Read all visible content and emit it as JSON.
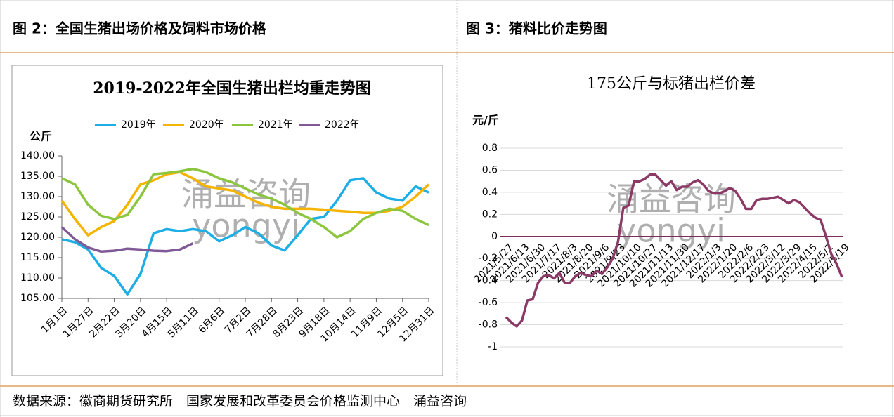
{
  "header": {
    "left_title": "图 2：全国生猪出场价格及饲料市场价格",
    "right_title": "图 3：猪料比价走势图"
  },
  "footer": "数据来源：徽商期货研究所　国家发展和改革委员会价格监测中心　涌益咨询",
  "watermark": {
    "cn": "涌益咨询",
    "en": "yongyi"
  },
  "chart_data": [
    {
      "type": "line",
      "title": "2019-2022年全国生猪出栏均重走势图",
      "y_label": "公斤",
      "grid": false,
      "legend": "top",
      "categories": [
        "1月1日",
        null,
        "1月27日",
        null,
        "2月22日",
        null,
        "3月20日",
        null,
        "4月15日",
        null,
        "5月11日",
        null,
        "6月6日",
        null,
        "7月2日",
        null,
        "7月28日",
        null,
        "8月23日",
        null,
        "9月18日",
        null,
        "10月14日",
        null,
        "11月9日",
        null,
        "12月5日",
        null,
        "12月31日"
      ],
      "series": [
        {
          "name": "2019年",
          "color": "#1eaee6",
          "values": [
            119.5,
            118.8,
            117,
            112.5,
            110.5,
            106,
            111,
            121,
            122,
            121.5,
            122,
            121.5,
            119,
            120.5,
            122.5,
            121,
            118,
            116.8,
            120.5,
            124.5,
            125,
            129,
            134,
            134.5,
            131,
            129.5,
            129,
            132.5,
            131
          ]
        },
        {
          "name": "2020年",
          "color": "#f5b400",
          "values": [
            129,
            124.5,
            120.5,
            122.5,
            124,
            128,
            133,
            134,
            135.5,
            136,
            134.5,
            132.5,
            132,
            131.5,
            130,
            128.5,
            127.5,
            127,
            127,
            127,
            126.8,
            126.5,
            126.3,
            126,
            126,
            126.5,
            127.5,
            130,
            133
          ]
        },
        {
          "name": "2021年",
          "color": "#8cc63f",
          "values": [
            134.5,
            133,
            128,
            125.3,
            124.5,
            125.5,
            130,
            135.5,
            135.8,
            136.2,
            136.8,
            136,
            134.5,
            133.5,
            132,
            130.5,
            129.5,
            128,
            126,
            124.5,
            122.5,
            120,
            121.5,
            124.5,
            126,
            127,
            126.5,
            124.5,
            123
          ]
        },
        {
          "name": "2022年",
          "color": "#7f5a96",
          "values": [
            122.5,
            119.5,
            117.5,
            116.5,
            116.7,
            117.2,
            117,
            116.7,
            116.6,
            117,
            118.5,
            null,
            null,
            null,
            null,
            null,
            null,
            null,
            null,
            null,
            null,
            null,
            null,
            null,
            null,
            null,
            null,
            null,
            null
          ]
        }
      ],
      "ylim": [
        105,
        140
      ],
      "yticks": [
        {
          "value": 105,
          "label": "105.00"
        },
        {
          "value": 110,
          "label": "110.00"
        },
        {
          "value": 115,
          "label": "115.00"
        },
        {
          "value": 120,
          "label": "120.00"
        },
        {
          "value": 125,
          "label": "125.00"
        },
        {
          "value": 130,
          "label": "130.00"
        },
        {
          "value": 135,
          "label": "135.00"
        },
        {
          "value": 140,
          "label": "140.00"
        }
      ]
    },
    {
      "type": "line",
      "title": "175公斤与标猪出栏价差",
      "y_label": "元/斤",
      "grid": true,
      "grid_color": "#d9d9d9",
      "zero_line_color": "#7b2d5e",
      "color": "#8b3a66",
      "categories": [
        "2021/5/27",
        null,
        null,
        "2021/6/13",
        null,
        null,
        "2021/6/30",
        null,
        null,
        "2021/7/17",
        null,
        null,
        "2021/8/3",
        null,
        null,
        "2021/8/20",
        null,
        null,
        "2021/9/6",
        null,
        null,
        "2021/9/23",
        null,
        null,
        "2021/10/10",
        null,
        null,
        "2021/10/27",
        null,
        null,
        "2021/11/13",
        null,
        null,
        "2021/11/30",
        null,
        null,
        "2021/12/17",
        null,
        null,
        "2022/1/3",
        null,
        null,
        "2022/1/20",
        null,
        null,
        "2022/2/6",
        null,
        null,
        "2022/2/23",
        null,
        null,
        "2022/3/12",
        null,
        null,
        "2022/3/29",
        null,
        null,
        "2022/4/15",
        null,
        null,
        "2022/5/2",
        null,
        null,
        "2022/5/19"
      ],
      "values": [
        -0.73,
        -0.78,
        -0.815,
        -0.76,
        -0.58,
        -0.57,
        -0.42,
        -0.36,
        -0.35,
        -0.38,
        -0.33,
        -0.42,
        -0.42,
        -0.36,
        -0.33,
        -0.35,
        -0.36,
        -0.31,
        -0.34,
        -0.28,
        -0.2,
        -0.05,
        0.26,
        0.28,
        0.5,
        0.5,
        0.52,
        0.56,
        0.56,
        0.51,
        0.46,
        0.5,
        0.42,
        0.45,
        0.45,
        0.49,
        0.51,
        0.47,
        0.41,
        0.39,
        0.39,
        0.41,
        0.44,
        0.41,
        0.34,
        0.25,
        0.25,
        0.33,
        0.34,
        0.34,
        0.35,
        0.36,
        0.33,
        0.3,
        0.33,
        0.31,
        0.26,
        0.21,
        0.17,
        0.15,
        0.0,
        -0.16,
        -0.25,
        -0.37
      ],
      "ylim": [
        -1,
        0.8
      ],
      "yticks": [
        -1,
        -0.8,
        -0.6,
        -0.4,
        -0.2,
        0,
        0.2,
        0.4,
        0.6,
        0.8
      ]
    }
  ]
}
